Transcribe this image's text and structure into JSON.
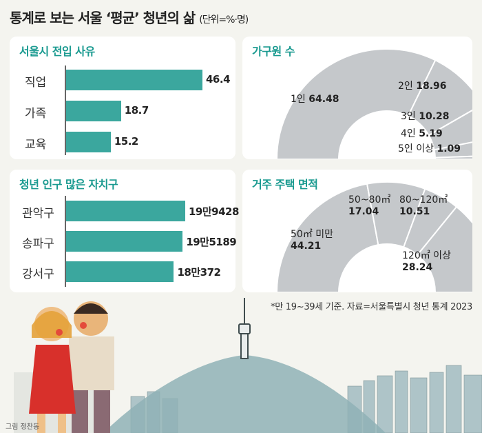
{
  "header": {
    "title": "통계로 보는 서울 ‘평균’ 청년의 삶",
    "unit": "(단위=%·명)"
  },
  "chart_data": [
    {
      "type": "bar",
      "title": "서울시 전입 사유",
      "categories": [
        "직업",
        "가족",
        "교육"
      ],
      "values": [
        46.4,
        18.7,
        15.2
      ],
      "value_labels": [
        "46.4",
        "18.7",
        "15.2"
      ],
      "color": "#3ba79e"
    },
    {
      "type": "pie",
      "title": "가구원 수",
      "categories": [
        "1인",
        "2인",
        "3인",
        "4인",
        "5인 이상"
      ],
      "values": [
        64.48,
        18.96,
        10.28,
        5.19,
        1.09
      ],
      "value_labels": [
        "64.48",
        "18.96",
        "10.28",
        "5.19",
        "1.09"
      ],
      "color": "#c5c8cb"
    },
    {
      "type": "bar",
      "title": "청년 인구 많은 자치구",
      "categories": [
        "관악구",
        "송파구",
        "강서구"
      ],
      "values": [
        199428,
        195189,
        180372
      ],
      "value_labels": [
        "19만9428",
        "19만5189",
        "18만372"
      ],
      "color": "#3ba79e"
    },
    {
      "type": "pie",
      "title": "거주 주택 면적",
      "categories": [
        "50㎡ 미만",
        "50~80㎡",
        "80~120㎡",
        "120㎡ 이상"
      ],
      "values": [
        44.21,
        17.04,
        10.51,
        28.24
      ],
      "value_labels": [
        "44.21",
        "17.04",
        "10.51",
        "28.24"
      ],
      "color": "#c5c8cb"
    }
  ],
  "footer": {
    "note": "*만 19~39세 기준. 자료=서울특별시 청년 통계 2023",
    "credit": "그림 정찬동"
  }
}
